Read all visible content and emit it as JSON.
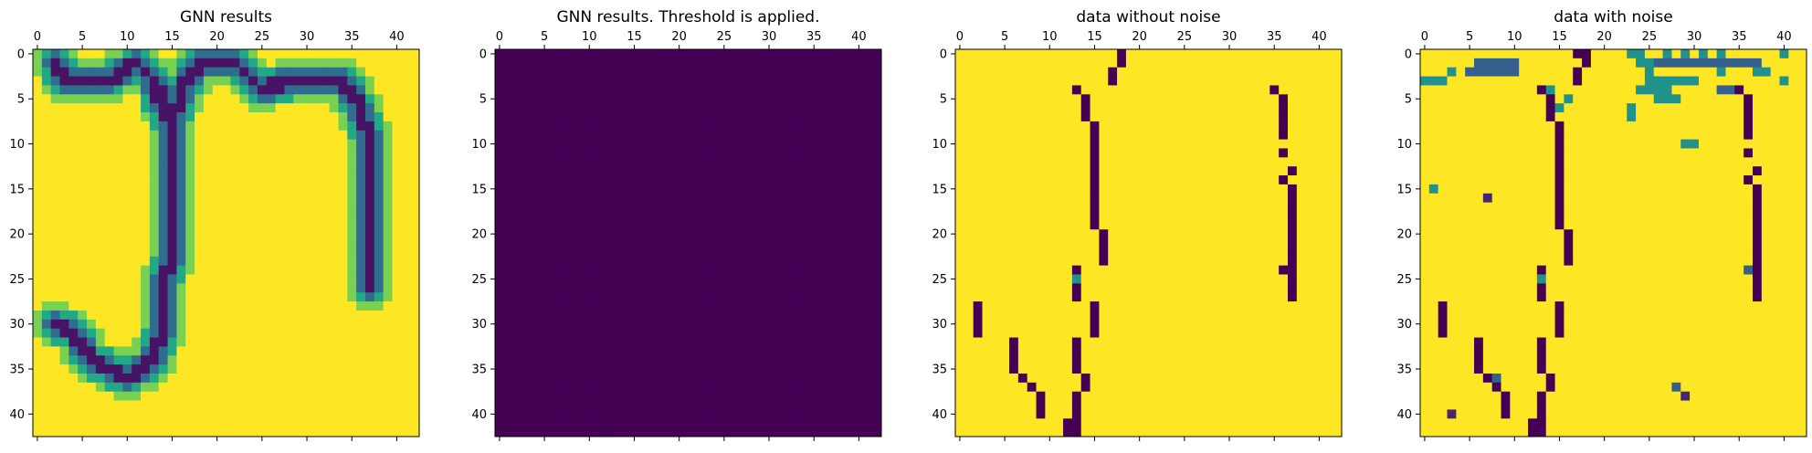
{
  "chart_data": [
    {
      "type": "heatmap",
      "title": "GNN results",
      "rows": 43,
      "cols": 43,
      "xticks": [
        0,
        5,
        10,
        15,
        20,
        25,
        30,
        35,
        40
      ],
      "yticks": [
        0,
        5,
        10,
        15,
        20,
        25,
        30,
        35,
        40
      ],
      "colormap": "viridis",
      "description_values": "values in [0,1]; 1 = yellow background, lower values green/blue along two vertical strokes joined by a top band and a diagonal lower-left stroke",
      "strokes": [
        {
          "path": [
            [
              2,
              1
            ],
            [
              3,
              3
            ],
            [
              8,
              3
            ],
            [
              11,
              1
            ],
            [
              13,
              3
            ],
            [
              14,
              6
            ],
            [
              15,
              8
            ],
            [
              15,
              22
            ],
            [
              14,
              26
            ],
            [
              14,
              30
            ],
            [
              13,
              34
            ],
            [
              10,
              36
            ],
            [
              6,
              34
            ],
            [
              4,
              31
            ],
            [
              2,
              30
            ]
          ],
          "width": 1.4
        },
        {
          "path": [
            [
              15,
              8
            ],
            [
              16,
              4
            ],
            [
              18,
              1
            ],
            [
              22,
              1
            ],
            [
              25,
              4
            ],
            [
              28,
              3
            ],
            [
              34,
              3
            ],
            [
              36,
              6
            ],
            [
              37,
              10
            ],
            [
              37,
              26
            ]
          ],
          "width": 1.3
        }
      ]
    },
    {
      "type": "heatmap",
      "title": "GNN results. Threshold is applied.",
      "rows": 43,
      "cols": 43,
      "xticks": [
        0,
        5,
        10,
        15,
        20,
        25,
        30,
        35,
        40
      ],
      "yticks": [
        0,
        5,
        10,
        15,
        20,
        25,
        30,
        35,
        40
      ],
      "colormap": "viridis",
      "uniform_value": 0
    },
    {
      "type": "heatmap",
      "title": "data without noise",
      "rows": 43,
      "cols": 43,
      "xticks": [
        0,
        5,
        10,
        15,
        20,
        25,
        30,
        35,
        40
      ],
      "yticks": [
        0,
        5,
        10,
        15,
        20,
        25,
        30,
        35,
        40
      ],
      "colormap": "viridis",
      "background_value": 1,
      "cells": [
        {
          "r": 0,
          "c": 18,
          "v": 0
        },
        {
          "r": 1,
          "c": 18,
          "v": 0
        },
        {
          "r": 2,
          "c": 17,
          "v": 0
        },
        {
          "r": 3,
          "c": 17,
          "v": 0
        },
        {
          "r": 4,
          "c": 13,
          "v": 0
        },
        {
          "r": 5,
          "c": 14,
          "v": 0
        },
        {
          "r": 6,
          "c": 14,
          "v": 0
        },
        {
          "r": 7,
          "c": 14,
          "v": 0
        },
        {
          "r": 8,
          "c": 15,
          "v": 0
        },
        {
          "r": 9,
          "c": 15,
          "v": 0
        },
        {
          "r": 10,
          "c": 15,
          "v": 0
        },
        {
          "r": 11,
          "c": 15,
          "v": 0
        },
        {
          "r": 12,
          "c": 15,
          "v": 0
        },
        {
          "r": 13,
          "c": 15,
          "v": 0
        },
        {
          "r": 14,
          "c": 15,
          "v": 0
        },
        {
          "r": 15,
          "c": 15,
          "v": 0
        },
        {
          "r": 16,
          "c": 15,
          "v": 0
        },
        {
          "r": 17,
          "c": 15,
          "v": 0
        },
        {
          "r": 18,
          "c": 15,
          "v": 0
        },
        {
          "r": 19,
          "c": 15,
          "v": 0
        },
        {
          "r": 20,
          "c": 16,
          "v": 0
        },
        {
          "r": 21,
          "c": 16,
          "v": 0
        },
        {
          "r": 22,
          "c": 16,
          "v": 0
        },
        {
          "r": 23,
          "c": 16,
          "v": 0
        },
        {
          "r": 24,
          "c": 13,
          "v": 0
        },
        {
          "r": 25,
          "c": 13,
          "v": 0.5
        },
        {
          "r": 26,
          "c": 13,
          "v": 0
        },
        {
          "r": 27,
          "c": 13,
          "v": 0
        },
        {
          "r": 28,
          "c": 15,
          "v": 0
        },
        {
          "r": 29,
          "c": 15,
          "v": 0
        },
        {
          "r": 30,
          "c": 15,
          "v": 0
        },
        {
          "r": 31,
          "c": 15,
          "v": 0
        },
        {
          "r": 28,
          "c": 2,
          "v": 0
        },
        {
          "r": 29,
          "c": 2,
          "v": 0
        },
        {
          "r": 30,
          "c": 2,
          "v": 0
        },
        {
          "r": 31,
          "c": 2,
          "v": 0
        },
        {
          "r": 32,
          "c": 6,
          "v": 0
        },
        {
          "r": 33,
          "c": 6,
          "v": 0
        },
        {
          "r": 34,
          "c": 6,
          "v": 0
        },
        {
          "r": 35,
          "c": 6,
          "v": 0
        },
        {
          "r": 36,
          "c": 7,
          "v": 0
        },
        {
          "r": 37,
          "c": 8,
          "v": 0
        },
        {
          "r": 38,
          "c": 9,
          "v": 0
        },
        {
          "r": 39,
          "c": 9,
          "v": 0
        },
        {
          "r": 40,
          "c": 9,
          "v": 0
        },
        {
          "r": 32,
          "c": 13,
          "v": 0
        },
        {
          "r": 33,
          "c": 13,
          "v": 0
        },
        {
          "r": 34,
          "c": 13,
          "v": 0
        },
        {
          "r": 35,
          "c": 13,
          "v": 0
        },
        {
          "r": 36,
          "c": 14,
          "v": 0
        },
        {
          "r": 37,
          "c": 14,
          "v": 0
        },
        {
          "r": 38,
          "c": 13,
          "v": 0
        },
        {
          "r": 39,
          "c": 13,
          "v": 0
        },
        {
          "r": 40,
          "c": 13,
          "v": 0
        },
        {
          "r": 41,
          "c": 12,
          "v": 0
        },
        {
          "r": 42,
          "c": 12,
          "v": 0
        },
        {
          "r": 41,
          "c": 13,
          "v": 0
        },
        {
          "r": 42,
          "c": 13,
          "v": 0
        },
        {
          "r": 4,
          "c": 35,
          "v": 0
        },
        {
          "r": 5,
          "c": 36,
          "v": 0
        },
        {
          "r": 6,
          "c": 36,
          "v": 0
        },
        {
          "r": 7,
          "c": 36,
          "v": 0
        },
        {
          "r": 8,
          "c": 36,
          "v": 0
        },
        {
          "r": 9,
          "c": 36,
          "v": 0
        },
        {
          "r": 11,
          "c": 36,
          "v": 0
        },
        {
          "r": 13,
          "c": 37,
          "v": 0
        },
        {
          "r": 14,
          "c": 36,
          "v": 0
        },
        {
          "r": 15,
          "c": 37,
          "v": 0
        },
        {
          "r": 16,
          "c": 37,
          "v": 0
        },
        {
          "r": 17,
          "c": 37,
          "v": 0
        },
        {
          "r": 18,
          "c": 37,
          "v": 0
        },
        {
          "r": 19,
          "c": 37,
          "v": 0
        },
        {
          "r": 20,
          "c": 37,
          "v": 0
        },
        {
          "r": 21,
          "c": 37,
          "v": 0
        },
        {
          "r": 22,
          "c": 37,
          "v": 0
        },
        {
          "r": 23,
          "c": 37,
          "v": 0
        },
        {
          "r": 24,
          "c": 36,
          "v": 0
        },
        {
          "r": 24,
          "c": 37,
          "v": 0
        },
        {
          "r": 25,
          "c": 37,
          "v": 0
        },
        {
          "r": 26,
          "c": 37,
          "v": 0
        },
        {
          "r": 27,
          "c": 37,
          "v": 0
        }
      ]
    },
    {
      "type": "heatmap",
      "title": "data with noise",
      "rows": 43,
      "cols": 43,
      "xticks": [
        0,
        5,
        10,
        15,
        20,
        25,
        30,
        35,
        40
      ],
      "yticks": [
        0,
        5,
        10,
        15,
        20,
        25,
        30,
        35,
        40
      ],
      "colormap": "viridis",
      "background_value": 1,
      "base": "same as data without noise",
      "noise_cells": [
        {
          "r": 3,
          "c": 0,
          "v": 0.5
        },
        {
          "r": 3,
          "c": 1,
          "v": 0.5
        },
        {
          "r": 3,
          "c": 2,
          "v": 0.5
        },
        {
          "r": 2,
          "c": 3,
          "v": 0.5
        },
        {
          "r": 2,
          "c": 5,
          "v": 0.3
        },
        {
          "r": 2,
          "c": 6,
          "v": 0.3
        },
        {
          "r": 2,
          "c": 7,
          "v": 0.3
        },
        {
          "r": 1,
          "c": 6,
          "v": 0.3
        },
        {
          "r": 1,
          "c": 7,
          "v": 0.3
        },
        {
          "r": 1,
          "c": 8,
          "v": 0.3
        },
        {
          "r": 1,
          "c": 9,
          "v": 0.3
        },
        {
          "r": 2,
          "c": 8,
          "v": 0.3
        },
        {
          "r": 2,
          "c": 9,
          "v": 0.3
        },
        {
          "r": 1,
          "c": 10,
          "v": 0.3
        },
        {
          "r": 2,
          "c": 10,
          "v": 0.3
        },
        {
          "r": 4,
          "c": 14,
          "v": 0.5
        },
        {
          "r": 5,
          "c": 16,
          "v": 0.5
        },
        {
          "r": 6,
          "c": 15,
          "v": 0.5
        },
        {
          "r": 0,
          "c": 23,
          "v": 0.5
        },
        {
          "r": 0,
          "c": 24,
          "v": 0.5
        },
        {
          "r": 1,
          "c": 24,
          "v": 0.5
        },
        {
          "r": 1,
          "c": 25,
          "v": 0.5
        },
        {
          "r": 1,
          "c": 26,
          "v": 0.3
        },
        {
          "r": 1,
          "c": 27,
          "v": 0.3
        },
        {
          "r": 1,
          "c": 28,
          "v": 0.3
        },
        {
          "r": 1,
          "c": 29,
          "v": 0.3
        },
        {
          "r": 0,
          "c": 27,
          "v": 0.5
        },
        {
          "r": 0,
          "c": 29,
          "v": 0.5
        },
        {
          "r": 0,
          "c": 31,
          "v": 0.5
        },
        {
          "r": 0,
          "c": 33,
          "v": 0.5
        },
        {
          "r": 1,
          "c": 30,
          "v": 0.3
        },
        {
          "r": 1,
          "c": 31,
          "v": 0.3
        },
        {
          "r": 1,
          "c": 32,
          "v": 0.3
        },
        {
          "r": 1,
          "c": 33,
          "v": 0.3
        },
        {
          "r": 1,
          "c": 34,
          "v": 0.3
        },
        {
          "r": 1,
          "c": 35,
          "v": 0.3
        },
        {
          "r": 1,
          "c": 36,
          "v": 0.3
        },
        {
          "r": 1,
          "c": 37,
          "v": 0.3
        },
        {
          "r": 2,
          "c": 37,
          "v": 0.5
        },
        {
          "r": 2,
          "c": 38,
          "v": 0.5
        },
        {
          "r": 2,
          "c": 25,
          "v": 0.5
        },
        {
          "r": 3,
          "c": 25,
          "v": 0.5
        },
        {
          "r": 3,
          "c": 26,
          "v": 0.5
        },
        {
          "r": 3,
          "c": 27,
          "v": 0.5
        },
        {
          "r": 3,
          "c": 28,
          "v": 0.5
        },
        {
          "r": 3,
          "c": 29,
          "v": 0.5
        },
        {
          "r": 3,
          "c": 30,
          "v": 0.5
        },
        {
          "r": 2,
          "c": 33,
          "v": 0.5
        },
        {
          "r": 4,
          "c": 24,
          "v": 0.5
        },
        {
          "r": 4,
          "c": 25,
          "v": 0.5
        },
        {
          "r": 4,
          "c": 26,
          "v": 0.5
        },
        {
          "r": 4,
          "c": 27,
          "v": 0.5
        },
        {
          "r": 5,
          "c": 26,
          "v": 0.5
        },
        {
          "r": 5,
          "c": 27,
          "v": 0.5
        },
        {
          "r": 5,
          "c": 28,
          "v": 0.5
        },
        {
          "r": 4,
          "c": 33,
          "v": 0.3
        },
        {
          "r": 4,
          "c": 34,
          "v": 0.3
        },
        {
          "r": 0,
          "c": 40,
          "v": 0.5
        },
        {
          "r": 3,
          "c": 40,
          "v": 0.5
        },
        {
          "r": 6,
          "c": 23,
          "v": 0.5
        },
        {
          "r": 7,
          "c": 23,
          "v": 0.5
        },
        {
          "r": 10,
          "c": 29,
          "v": 0.5
        },
        {
          "r": 10,
          "c": 30,
          "v": 0.5
        },
        {
          "r": 15,
          "c": 1,
          "v": 0.5
        },
        {
          "r": 16,
          "c": 7,
          "v": 0.1
        },
        {
          "r": 37,
          "c": 28,
          "v": 0.3
        },
        {
          "r": 38,
          "c": 29,
          "v": 0.1
        },
        {
          "r": 40,
          "c": 3,
          "v": 0.1
        },
        {
          "r": 36,
          "c": 8,
          "v": 0.3
        },
        {
          "r": 0,
          "c": 17,
          "v": 0
        },
        {
          "r": 24,
          "c": 36,
          "v": 0.3
        }
      ]
    }
  ]
}
